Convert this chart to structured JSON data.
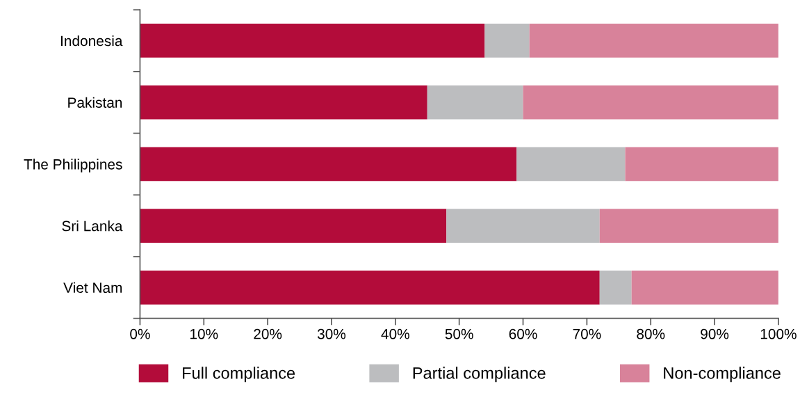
{
  "chart_data": {
    "type": "bar",
    "orientation": "horizontal",
    "stacked": true,
    "categories": [
      "Indonesia",
      "Pakistan",
      "The Philippines",
      "Sri Lanka",
      "Viet Nam"
    ],
    "series": [
      {
        "name": "Full compliance",
        "color": "#b30c3a",
        "values": [
          54,
          45,
          59,
          48,
          72
        ]
      },
      {
        "name": "Partial compliance",
        "color": "#bcbdbf",
        "values": [
          7,
          15,
          17,
          24,
          5
        ]
      },
      {
        "name": "Non-compliance",
        "color": "#d8829a",
        "values": [
          39,
          40,
          24,
          28,
          23
        ]
      }
    ],
    "xlim": [
      0,
      100
    ],
    "xticks": [
      {
        "value": 0,
        "label": "0%"
      },
      {
        "value": 10,
        "label": "10%"
      },
      {
        "value": 20,
        "label": "20%"
      },
      {
        "value": 30,
        "label": "30%"
      },
      {
        "value": 40,
        "label": "40%"
      },
      {
        "value": 50,
        "label": "50%"
      },
      {
        "value": 60,
        "label": "60%"
      },
      {
        "value": 70,
        "label": "70%"
      },
      {
        "value": 80,
        "label": "80%"
      },
      {
        "value": 90,
        "label": "90%"
      },
      {
        "value": 100,
        "label": "100%"
      }
    ],
    "grid": false,
    "legend": "bottom"
  }
}
